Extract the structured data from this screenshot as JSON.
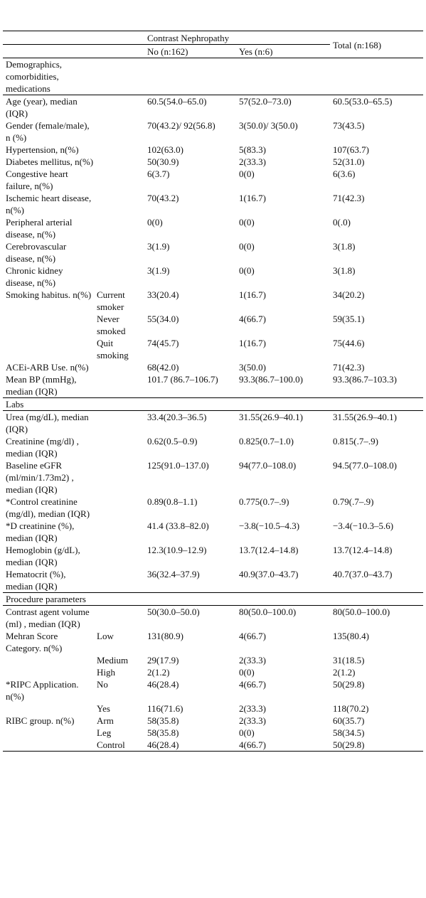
{
  "table": {
    "header": {
      "group": "Contrast Nephropathy",
      "no": "No (n:162)",
      "yes": "Yes (n:6)",
      "total": "Total (n:168)"
    },
    "rows": [
      {
        "section": "Demographics, comorbidities, medications"
      },
      {
        "label": "Age (year), median (IQR)",
        "no": "60.5(54.0–65.0)",
        "yes": "57(52.0–73.0)",
        "total": "60.5(53.0–65.5)"
      },
      {
        "label": "Gender (female/male), n (%)",
        "no": "70(43.2)/ 92(56.8)",
        "yes": "3(50.0)/ 3(50.0)",
        "total": "73(43.5)"
      },
      {
        "label": "Hypertension, n(%)",
        "no": "102(63.0)",
        "yes": "5(83.3)",
        "total": "107(63.7)"
      },
      {
        "label": "Diabetes mellitus, n(%)",
        "no": "50(30.9)",
        "yes": "2(33.3)",
        "total": "52(31.0)"
      },
      {
        "label": "Congestive heart failure, n(%)",
        "no": "6(3.7)",
        "yes": "0(0)",
        "total": "6(3.6)"
      },
      {
        "label": "Ischemic heart disease, n(%)",
        "no": "70(43.2)",
        "yes": "1(16.7)",
        "total": "71(42.3)"
      },
      {
        "label": "Peripheral arterial disease, n(%)",
        "no": "0(0)",
        "yes": "0(0)",
        "total": "0(.0)"
      },
      {
        "label": "Cerebrovascular disease, n(%)",
        "no": "3(1.9)",
        "yes": "0(0)",
        "total": "3(1.8)"
      },
      {
        "label": "Chronic kidney disease, n(%)",
        "no": "3(1.9)",
        "yes": "0(0)",
        "total": "3(1.8)"
      },
      {
        "label": "Smoking habitus. n(%)",
        "sub": "Current smoker",
        "no": "33(20.4)",
        "yes": "1(16.7)",
        "total": "34(20.2)"
      },
      {
        "sub": "Never smoked",
        "no": "55(34.0)",
        "yes": "4(66.7)",
        "total": "59(35.1)"
      },
      {
        "sub": "Quit smoking",
        "no": "74(45.7)",
        "yes": "1(16.7)",
        "total": "75(44.6)"
      },
      {
        "label": "ACEi-ARB Use. n(%)",
        "no": "68(42.0)",
        "yes": "3(50.0)",
        "total": "71(42.3)"
      },
      {
        "label": "Mean BP (mmHg), median (IQR)",
        "no": "101.7 (86.7–106.7)",
        "yes": "93.3(86.7–100.0)",
        "total": "93.3(86.7–103.3)"
      },
      {
        "section": "Labs"
      },
      {
        "label": "Urea (mg/dL), median (IQR)",
        "no": "33.4(20.3–36.5)",
        "yes": "31.55(26.9–40.1)",
        "total": "31.55(26.9–40.1)"
      },
      {
        "label": "Creatinine (mg/dl) , median (IQR)",
        "no": "0.62(0.5–0.9)",
        "yes": "0.825(0.7–1.0)",
        "total": "0.815(.7–.9)"
      },
      {
        "label": "Baseline eGFR (ml/min/1.73m2) , median (IQR)",
        "no": "125(91.0–137.0)",
        "yes": "94(77.0–108.0)",
        "total": "94.5(77.0–108.0)"
      },
      {
        "label": "*Control creatinine (mg/dl), median (IQR)",
        "no": "0.89(0.8–1.1)",
        "yes": "0.775(0.7–.9)",
        "total": "0.79(.7–.9)"
      },
      {
        "label": "*D creatinine (%), median (IQR)",
        "no": "41.4 (33.8–82.0)",
        "yes": "−3.8(−10.5–4.3)",
        "total": "−3.4(−10.3–5.6)"
      },
      {
        "label": "Hemoglobin (g/dL), median (IQR)",
        "no": "12.3(10.9–12.9)",
        "yes": "13.7(12.4–14.8)",
        "total": "13.7(12.4–14.8)"
      },
      {
        "label": "Hematocrit (%), median (IQR)",
        "no": "36(32.4–37.9)",
        "yes": "40.9(37.0–43.7)",
        "total": "40.7(37.0–43.7)"
      },
      {
        "section": "Procedure parameters"
      },
      {
        "label": "Contrast agent volume (ml) , median (IQR)",
        "no": "50(30.0–50.0)",
        "yes": "80(50.0–100.0)",
        "total": "80(50.0–100.0)"
      },
      {
        "label": "Mehran Score Category. n(%)",
        "sub": "Low",
        "no": "131(80.9)",
        "yes": "4(66.7)",
        "total": "135(80.4)"
      },
      {
        "sub": "Medium",
        "no": "29(17.9)",
        "yes": "2(33.3)",
        "total": "31(18.5)"
      },
      {
        "sub": "High",
        "no": "2(1.2)",
        "yes": "0(0)",
        "total": "2(1.2)"
      },
      {
        "label": "*RIPC Application. n(%)",
        "sub": "No",
        "no": "46(28.4)",
        "yes": "4(66.7)",
        "total": "50(29.8)"
      },
      {
        "sub": "Yes",
        "no": "116(71.6)",
        "yes": "2(33.3)",
        "total": "118(70.2)"
      },
      {
        "label": "RIBC group. n(%)",
        "sub": "Arm",
        "no": "58(35.8)",
        "yes": "2(33.3)",
        "total": "60(35.7)"
      },
      {
        "sub": "Leg",
        "no": "58(35.8)",
        "yes": "0(0)",
        "total": "58(34.5)"
      },
      {
        "sub": "Control",
        "no": "46(28.4)",
        "yes": "4(66.7)",
        "total": "50(29.8)"
      }
    ]
  }
}
